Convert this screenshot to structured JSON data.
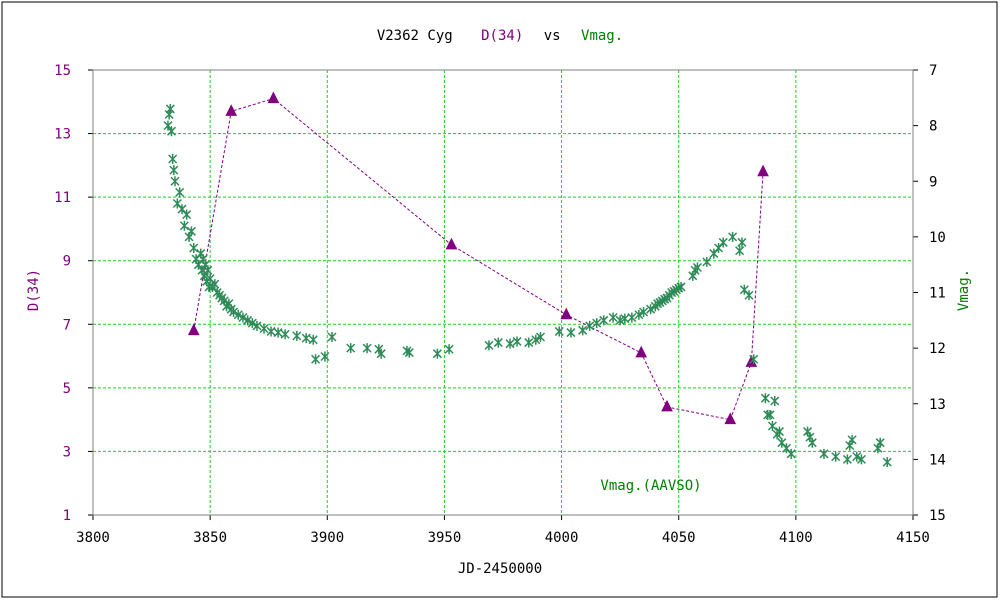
{
  "chart_data": {
    "type": "scatter",
    "title_parts": [
      {
        "text": "V2362 Cyg",
        "color": "#000000"
      },
      {
        "text": "D(34)",
        "color": "#800080"
      },
      {
        "text": "vs",
        "color": "#000000"
      },
      {
        "text": "Vmag.",
        "color": "#008000"
      }
    ],
    "xlabel": "JD-2450000",
    "ylabel_left": "D(34)",
    "ylabel_right": "Vmag.",
    "annotation": "Vmag.(AAVSO)",
    "xlim": [
      3800,
      4150
    ],
    "ylim_left": [
      1,
      15
    ],
    "ylim_right": [
      15,
      7
    ],
    "x_ticks": [
      3800,
      3850,
      3900,
      3950,
      4000,
      4050,
      4100,
      4150
    ],
    "left_ticks": [
      1,
      3,
      5,
      7,
      9,
      11,
      13,
      15
    ],
    "right_ticks": [
      7,
      8,
      9,
      10,
      11,
      12,
      13,
      14,
      15
    ],
    "grid": true,
    "colors": {
      "d34": "#800080",
      "vmag": "#2e8b57",
      "grid": "#22cc22",
      "frame": "#808080"
    },
    "series": [
      {
        "name": "D(34)",
        "axis": "left",
        "marker": "triangle",
        "connected": true,
        "x": [
          3843,
          3859,
          3877,
          3953,
          4002,
          4034,
          4045,
          4072,
          4081,
          4086
        ],
        "y": [
          6.8,
          13.7,
          14.1,
          9.5,
          7.3,
          6.1,
          4.4,
          4.0,
          5.8,
          11.8
        ]
      },
      {
        "name": "Vmag.(AAVSO)",
        "axis": "right",
        "marker": "asterisk",
        "connected": false,
        "x": [
          3832,
          3832.5,
          3833,
          3833.5,
          3834,
          3834.5,
          3835,
          3836,
          3837,
          3838,
          3839,
          3840,
          3841,
          3842,
          3843,
          3844,
          3845,
          3846,
          3846.5,
          3847,
          3847.5,
          3848,
          3848.5,
          3849,
          3849.5,
          3850,
          3851,
          3852,
          3853,
          3854,
          3855,
          3856,
          3857,
          3858,
          3859,
          3860,
          3862,
          3864,
          3866,
          3868,
          3870,
          3873,
          3876,
          3879,
          3882,
          3887,
          3891,
          3894,
          3902,
          3895,
          3899,
          3910,
          3917,
          3922,
          3923,
          3934,
          3935,
          3947,
          3952,
          3969,
          3973,
          3978,
          3981,
          3986,
          3989,
          3991,
          3999,
          4004,
          4009,
          4012,
          4015,
          4018,
          4022,
          4025,
          4027,
          4030,
          4033,
          4035,
          4038,
          4040,
          4041,
          4042,
          4043,
          4044,
          4045,
          4046,
          4047,
          4048,
          4049,
          4050,
          4051,
          4056,
          4057,
          4058,
          4062,
          4065,
          4067,
          4069,
          4073,
          4076,
          4077,
          4078,
          4080,
          4082,
          4087,
          4088,
          4089,
          4090,
          4091,
          4092,
          4093,
          4094,
          4096,
          4098,
          4105,
          4106,
          4107,
          4112,
          4117,
          4122,
          4123,
          4124,
          4126,
          4128,
          4135,
          4136,
          4139
        ],
        "y": [
          8.0,
          7.8,
          7.7,
          8.1,
          8.6,
          8.8,
          9.0,
          9.4,
          9.2,
          9.5,
          9.8,
          9.6,
          10.0,
          9.9,
          10.2,
          10.4,
          10.5,
          10.3,
          10.6,
          10.4,
          10.7,
          10.5,
          10.8,
          10.6,
          10.9,
          10.75,
          10.9,
          10.85,
          11.0,
          11.05,
          11.1,
          11.15,
          11.25,
          11.2,
          11.3,
          11.35,
          11.4,
          11.45,
          11.5,
          11.55,
          11.6,
          11.65,
          11.7,
          11.72,
          11.75,
          11.78,
          11.82,
          11.85,
          11.8,
          12.2,
          12.15,
          12.0,
          12.0,
          12.02,
          12.1,
          12.05,
          12.08,
          12.1,
          12.02,
          11.95,
          11.9,
          11.92,
          11.88,
          11.9,
          11.85,
          11.8,
          11.7,
          11.72,
          11.68,
          11.6,
          11.55,
          11.5,
          11.45,
          11.5,
          11.47,
          11.45,
          11.4,
          11.35,
          11.3,
          11.25,
          11.2,
          11.18,
          11.15,
          11.12,
          11.1,
          11.05,
          11.0,
          10.98,
          10.95,
          10.92,
          10.9,
          10.7,
          10.6,
          10.55,
          10.45,
          10.3,
          10.2,
          10.1,
          10.0,
          10.25,
          10.1,
          10.95,
          11.05,
          12.2,
          12.9,
          13.2,
          13.2,
          13.4,
          12.95,
          13.55,
          13.5,
          13.7,
          13.8,
          13.9,
          13.5,
          13.6,
          13.7,
          13.9,
          13.95,
          14.0,
          13.75,
          13.65,
          13.95,
          14.0,
          13.8,
          13.7,
          14.05
        ]
      }
    ]
  }
}
